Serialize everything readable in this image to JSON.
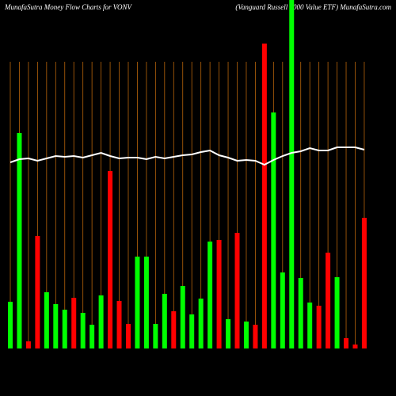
{
  "chart_data": {
    "type": "bar",
    "title": "MunafaSutra  Money Flow  Charts for VONV",
    "subtitle": "(Vanguard Russell 1000  Value  ETF) MunafaSutra.com",
    "ylim": [
      0,
      440
    ],
    "values": [
      59,
      272,
      9,
      142,
      71,
      56,
      49,
      64,
      45,
      30,
      67,
      224,
      60,
      31,
      116,
      116,
      31,
      69,
      47,
      79,
      43,
      63,
      135,
      137,
      37,
      146,
      34,
      30,
      385,
      298,
      96,
      440,
      89,
      58,
      54,
      121,
      90,
      13,
      5,
      165
    ],
    "colors": [
      "#00ff00",
      "#00ff00",
      "#ff0000",
      "#ff0000",
      "#00ff00",
      "#00ff00",
      "#00ff00",
      "#ff0000",
      "#00ff00",
      "#00ff00",
      "#00ff00",
      "#ff0000",
      "#ff0000",
      "#ff0000",
      "#00ff00",
      "#00ff00",
      "#00ff00",
      "#00ff00",
      "#ff0000",
      "#00ff00",
      "#00ff00",
      "#00ff00",
      "#00ff00",
      "#ff0000",
      "#00ff00",
      "#ff0000",
      "#00ff00",
      "#ff0000",
      "#ff0000",
      "#00ff00",
      "#00ff00",
      "#00ff00",
      "#00ff00",
      "#00ff00",
      "#ff0000",
      "#ff0000",
      "#00ff00",
      "#ff0000",
      "#ff0000",
      "#ff0000"
    ],
    "line": {
      "color": "#ffffff",
      "values": [
        235,
        239,
        240,
        237,
        240,
        243,
        242,
        243,
        241,
        244,
        247,
        243,
        240,
        241,
        241,
        239,
        242,
        240,
        242,
        244,
        245,
        248,
        250,
        244,
        241,
        237,
        238,
        237,
        232,
        238,
        243,
        247,
        249,
        253,
        250,
        250,
        254,
        254,
        254,
        251
      ]
    },
    "grid_color": "#b8650a"
  }
}
